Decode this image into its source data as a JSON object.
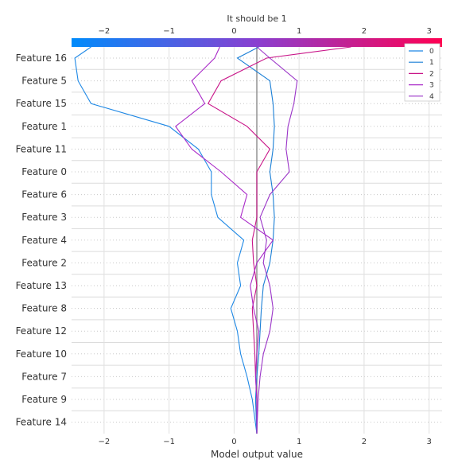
{
  "chart_data": {
    "type": "line",
    "title": "It should be 1",
    "xlabel": "Model output value",
    "xlim": [
      -2.5,
      3.2
    ],
    "xticks": [
      -2,
      -1,
      0,
      1,
      2,
      3
    ],
    "features": [
      "Feature 16",
      "Feature 5",
      "Feature 15",
      "Feature 1",
      "Feature 11",
      "Feature 0",
      "Feature 6",
      "Feature 3",
      "Feature 4",
      "Feature 2",
      "Feature 13",
      "Feature 8",
      "Feature 12",
      "Feature 10",
      "Feature 7",
      "Feature 9",
      "Feature 14"
    ],
    "base_value": 0.35,
    "legend_position": "top-right",
    "grid": true,
    "colorbar_colors": [
      "#008bfb",
      "#ff0052"
    ],
    "series": [
      {
        "name": "0",
        "color": "#1e88e5",
        "values": [
          -2.2,
          -2.45,
          -2.4,
          -2.2,
          -1.0,
          -0.55,
          -0.35,
          -0.35,
          -0.25,
          0.15,
          0.05,
          0.1,
          -0.05,
          0.05,
          0.1,
          0.2,
          0.28,
          0.35
        ]
      },
      {
        "name": "1",
        "color": "#1a7fd6",
        "values": [
          0.38,
          0.05,
          0.55,
          0.6,
          0.62,
          0.6,
          0.55,
          0.6,
          0.62,
          0.6,
          0.55,
          0.45,
          0.42,
          0.4,
          0.38,
          0.35,
          0.33,
          0.35
        ]
      },
      {
        "name": "2",
        "color": "#c81488",
        "values": [
          1.8,
          0.5,
          -0.2,
          -0.4,
          0.2,
          0.55,
          0.35,
          0.35,
          0.35,
          0.28,
          0.3,
          0.35,
          0.28,
          0.3,
          0.32,
          0.33,
          0.35,
          0.35
        ]
      },
      {
        "name": "3",
        "color": "#a92ac8",
        "values": [
          -0.22,
          -0.3,
          -0.65,
          -0.45,
          -0.9,
          -0.65,
          -0.2,
          0.2,
          0.1,
          0.6,
          0.35,
          0.25,
          0.3,
          0.38,
          0.35,
          0.33,
          0.35,
          0.35
        ]
      },
      {
        "name": "4",
        "color": "#9b35c8",
        "values": [
          0.35,
          0.55,
          0.97,
          0.92,
          0.83,
          0.8,
          0.85,
          0.55,
          0.4,
          0.5,
          0.45,
          0.55,
          0.6,
          0.55,
          0.45,
          0.4,
          0.37,
          0.35
        ]
      }
    ]
  }
}
